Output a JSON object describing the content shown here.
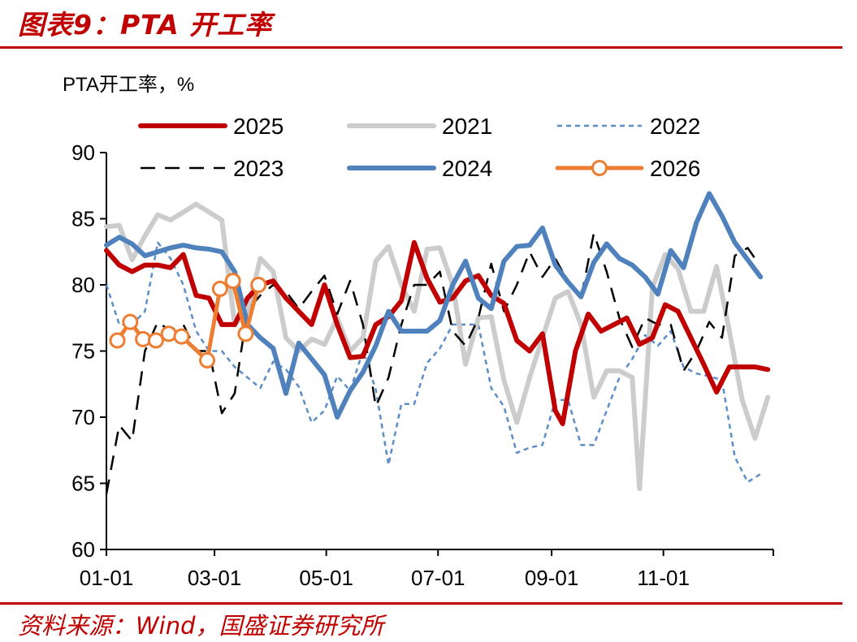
{
  "figure": {
    "title": "图表9：PTA 开工率",
    "source": "资料来源：Wind，国盛证券研究所",
    "accent_color": "#c00000"
  },
  "chart_data": {
    "type": "line",
    "ylabel": "PTA开工率，%",
    "xlabel": "",
    "ylim": [
      60,
      90
    ],
    "yticks": [
      60,
      65,
      70,
      75,
      80,
      85,
      90
    ],
    "xlim_day": [
      1,
      365
    ],
    "xticks": [
      {
        "label": "01-01",
        "day": 1
      },
      {
        "label": "03-01",
        "day": 60
      },
      {
        "label": "05-01",
        "day": 121
      },
      {
        "label": "07-01",
        "day": 182
      },
      {
        "label": "09-01",
        "day": 244
      },
      {
        "label": "11-01",
        "day": 305
      }
    ],
    "grid": false,
    "legend_position": "top",
    "series": [
      {
        "name": "2025",
        "color": "#c00000",
        "style": "solid",
        "width": 6,
        "markers": false,
        "points": [
          [
            1,
            82.6
          ],
          [
            8,
            81.5
          ],
          [
            15,
            81
          ],
          [
            22,
            81.5
          ],
          [
            29,
            81.5
          ],
          [
            36,
            81.3
          ],
          [
            43,
            82.3
          ],
          [
            50,
            79.2
          ],
          [
            57,
            79
          ],
          [
            64,
            77
          ],
          [
            71,
            77
          ],
          [
            78,
            79
          ],
          [
            85,
            80
          ],
          [
            92,
            80.3
          ],
          [
            99,
            79
          ],
          [
            106,
            78
          ],
          [
            113,
            77
          ],
          [
            120,
            80
          ],
          [
            127,
            77
          ],
          [
            134,
            74.5
          ],
          [
            141,
            74.6
          ],
          [
            148,
            77
          ],
          [
            155,
            77.6
          ],
          [
            162,
            78.8
          ],
          [
            169,
            83.2
          ],
          [
            176,
            80.5
          ],
          [
            183,
            78.7
          ],
          [
            190,
            79
          ],
          [
            197,
            80.3
          ],
          [
            204,
            80.7
          ],
          [
            211,
            79.2
          ],
          [
            218,
            78.6
          ],
          [
            225,
            75.8
          ],
          [
            232,
            75
          ],
          [
            239,
            76.3
          ],
          [
            246,
            70.5
          ],
          [
            250,
            69.5
          ],
          [
            257,
            75
          ],
          [
            264,
            77.8
          ],
          [
            271,
            76.5
          ],
          [
            278,
            77
          ],
          [
            285,
            77.5
          ],
          [
            292,
            75.5
          ],
          [
            299,
            76
          ],
          [
            306,
            78.5
          ],
          [
            313,
            78
          ],
          [
            320,
            76
          ],
          [
            327,
            74
          ],
          [
            334,
            71.9
          ],
          [
            341,
            73.8
          ],
          [
            348,
            73.8
          ],
          [
            355,
            73.8
          ],
          [
            362,
            73.6
          ]
        ]
      },
      {
        "name": "2021",
        "color": "#cccccc",
        "style": "solid",
        "width": 6,
        "markers": false,
        "points": [
          [
            1,
            84.4
          ],
          [
            8,
            84.5
          ],
          [
            15,
            81.9
          ],
          [
            22,
            83.7
          ],
          [
            29,
            85.3
          ],
          [
            36,
            84.9
          ],
          [
            43,
            85.5
          ],
          [
            50,
            86.1
          ],
          [
            57,
            85.5
          ],
          [
            64,
            84.9
          ],
          [
            71,
            77
          ],
          [
            78,
            78
          ],
          [
            85,
            82
          ],
          [
            92,
            81
          ],
          [
            99,
            76
          ],
          [
            106,
            75
          ],
          [
            113,
            75.9
          ],
          [
            120,
            75.5
          ],
          [
            127,
            77.5
          ],
          [
            134,
            75
          ],
          [
            141,
            76
          ],
          [
            148,
            81.8
          ],
          [
            155,
            82.9
          ],
          [
            162,
            80
          ],
          [
            169,
            78
          ],
          [
            176,
            82.7
          ],
          [
            183,
            82.8
          ],
          [
            190,
            80
          ],
          [
            197,
            74
          ],
          [
            204,
            77.5
          ],
          [
            211,
            77.6
          ],
          [
            218,
            72.8
          ],
          [
            225,
            69.6
          ],
          [
            232,
            73
          ],
          [
            239,
            76
          ],
          [
            246,
            79
          ],
          [
            253,
            79.5
          ],
          [
            260,
            77
          ],
          [
            267,
            71.5
          ],
          [
            274,
            73.5
          ],
          [
            281,
            73.5
          ],
          [
            288,
            73
          ],
          [
            292,
            64.6
          ],
          [
            299,
            79.8
          ],
          [
            306,
            82.3
          ],
          [
            313,
            81.2
          ],
          [
            320,
            78
          ],
          [
            327,
            78
          ],
          [
            334,
            81.4
          ],
          [
            341,
            76.5
          ],
          [
            348,
            71.3
          ],
          [
            355,
            68.4
          ],
          [
            362,
            71.5
          ]
        ]
      },
      {
        "name": "2022",
        "color": "#5b8ec8",
        "style": "dashed",
        "width": 2.5,
        "markers": false,
        "points": [
          [
            1,
            80
          ],
          [
            8,
            77
          ],
          [
            15,
            77
          ],
          [
            22,
            78
          ],
          [
            29,
            83.2
          ],
          [
            36,
            82
          ],
          [
            43,
            80
          ],
          [
            50,
            76.5
          ],
          [
            57,
            75
          ],
          [
            64,
            75
          ],
          [
            71,
            73.8
          ],
          [
            78,
            73
          ],
          [
            85,
            72.2
          ],
          [
            92,
            74.2
          ],
          [
            99,
            73.6
          ],
          [
            106,
            72.3
          ],
          [
            113,
            69.6
          ],
          [
            120,
            70.5
          ],
          [
            127,
            73.1
          ],
          [
            134,
            72
          ],
          [
            141,
            75
          ],
          [
            148,
            72.1
          ],
          [
            155,
            66.4
          ],
          [
            162,
            71
          ],
          [
            169,
            71
          ],
          [
            176,
            74.1
          ],
          [
            183,
            75.2
          ],
          [
            190,
            77
          ],
          [
            197,
            77
          ],
          [
            204,
            77
          ],
          [
            211,
            72.2
          ],
          [
            218,
            70.8
          ],
          [
            225,
            67.3
          ],
          [
            232,
            67.7
          ],
          [
            239,
            67.9
          ],
          [
            246,
            71.3
          ],
          [
            253,
            71.3
          ],
          [
            260,
            67.9
          ],
          [
            267,
            67.9
          ],
          [
            274,
            70.5
          ],
          [
            281,
            73
          ],
          [
            288,
            74.4
          ],
          [
            295,
            76.2
          ],
          [
            302,
            75.4
          ],
          [
            309,
            76.5
          ],
          [
            316,
            73.8
          ],
          [
            323,
            73.3
          ],
          [
            330,
            73.1
          ],
          [
            337,
            72.8
          ],
          [
            344,
            67
          ],
          [
            351,
            65.1
          ],
          [
            358,
            65.7
          ]
        ]
      },
      {
        "name": "2023",
        "color": "#000000",
        "style": "dashed",
        "width": 2.5,
        "markers": false,
        "points": [
          [
            1,
            64.2
          ],
          [
            8,
            69.4
          ],
          [
            15,
            68.2
          ],
          [
            22,
            75
          ],
          [
            29,
            77.2
          ],
          [
            36,
            76.5
          ],
          [
            43,
            77
          ],
          [
            50,
            75
          ],
          [
            57,
            75
          ],
          [
            64,
            70.3
          ],
          [
            71,
            71.8
          ],
          [
            78,
            78.1
          ],
          [
            85,
            79.2
          ],
          [
            92,
            80
          ],
          [
            99,
            79.5
          ],
          [
            106,
            78.2
          ],
          [
            113,
            79.5
          ],
          [
            120,
            80.7
          ],
          [
            127,
            77.8
          ],
          [
            134,
            80.3
          ],
          [
            141,
            77
          ],
          [
            148,
            70.8
          ],
          [
            155,
            73
          ],
          [
            162,
            77
          ],
          [
            169,
            80
          ],
          [
            176,
            80
          ],
          [
            183,
            81
          ],
          [
            190,
            76.5
          ],
          [
            197,
            75.4
          ],
          [
            204,
            77.5
          ],
          [
            211,
            81.6
          ],
          [
            218,
            78
          ],
          [
            225,
            80
          ],
          [
            232,
            82.5
          ],
          [
            239,
            80.6
          ],
          [
            246,
            82
          ],
          [
            253,
            80.2
          ],
          [
            260,
            79
          ],
          [
            267,
            83.9
          ],
          [
            274,
            81
          ],
          [
            281,
            77.5
          ],
          [
            288,
            75.3
          ],
          [
            295,
            77.5
          ],
          [
            302,
            77
          ],
          [
            309,
            77
          ],
          [
            316,
            73.5
          ],
          [
            323,
            75
          ],
          [
            330,
            77.2
          ],
          [
            337,
            76
          ],
          [
            344,
            82.2
          ],
          [
            351,
            82.8
          ],
          [
            356,
            81.8
          ]
        ]
      },
      {
        "name": "2024",
        "color": "#4f81bd",
        "style": "solid",
        "width": 6,
        "markers": false,
        "points": [
          [
            1,
            83
          ],
          [
            8,
            83.6
          ],
          [
            15,
            83.1
          ],
          [
            22,
            82.2
          ],
          [
            29,
            82.5
          ],
          [
            36,
            82.8
          ],
          [
            43,
            83
          ],
          [
            50,
            82.8
          ],
          [
            57,
            82.7
          ],
          [
            64,
            82.5
          ],
          [
            71,
            81
          ],
          [
            78,
            77
          ],
          [
            85,
            76
          ],
          [
            92,
            75.2
          ],
          [
            99,
            71.8
          ],
          [
            106,
            75.6
          ],
          [
            113,
            74.4
          ],
          [
            120,
            73.2
          ],
          [
            127,
            70
          ],
          [
            134,
            72
          ],
          [
            141,
            73.4
          ],
          [
            148,
            75.4
          ],
          [
            155,
            78
          ],
          [
            162,
            76.5
          ],
          [
            169,
            76.5
          ],
          [
            176,
            76.5
          ],
          [
            183,
            77.3
          ],
          [
            190,
            80
          ],
          [
            197,
            81.8
          ],
          [
            204,
            79
          ],
          [
            211,
            78.2
          ],
          [
            218,
            81.8
          ],
          [
            225,
            82.9
          ],
          [
            232,
            83
          ],
          [
            239,
            84.3
          ],
          [
            246,
            81.5
          ],
          [
            253,
            80.2
          ],
          [
            260,
            79.1
          ],
          [
            267,
            81.7
          ],
          [
            274,
            83.1
          ],
          [
            281,
            82
          ],
          [
            288,
            81.5
          ],
          [
            295,
            80.6
          ],
          [
            302,
            79.3
          ],
          [
            309,
            82.6
          ],
          [
            316,
            81.3
          ],
          [
            323,
            84.7
          ],
          [
            330,
            86.9
          ],
          [
            337,
            85.2
          ],
          [
            344,
            83.2
          ],
          [
            351,
            81.9
          ],
          [
            358,
            80.6
          ]
        ]
      },
      {
        "name": "2026",
        "color": "#ed7d31",
        "style": "solid",
        "width": 5,
        "markers": true,
        "points": [
          [
            7,
            75.8
          ],
          [
            14,
            77.2
          ],
          [
            21,
            75.9
          ],
          [
            28,
            75.8
          ],
          [
            35,
            76.3
          ],
          [
            42,
            76.1
          ],
          [
            56,
            74.3
          ],
          [
            63,
            79.7
          ],
          [
            70,
            80.3
          ],
          [
            77,
            76.3
          ],
          [
            84,
            80
          ]
        ]
      }
    ]
  }
}
